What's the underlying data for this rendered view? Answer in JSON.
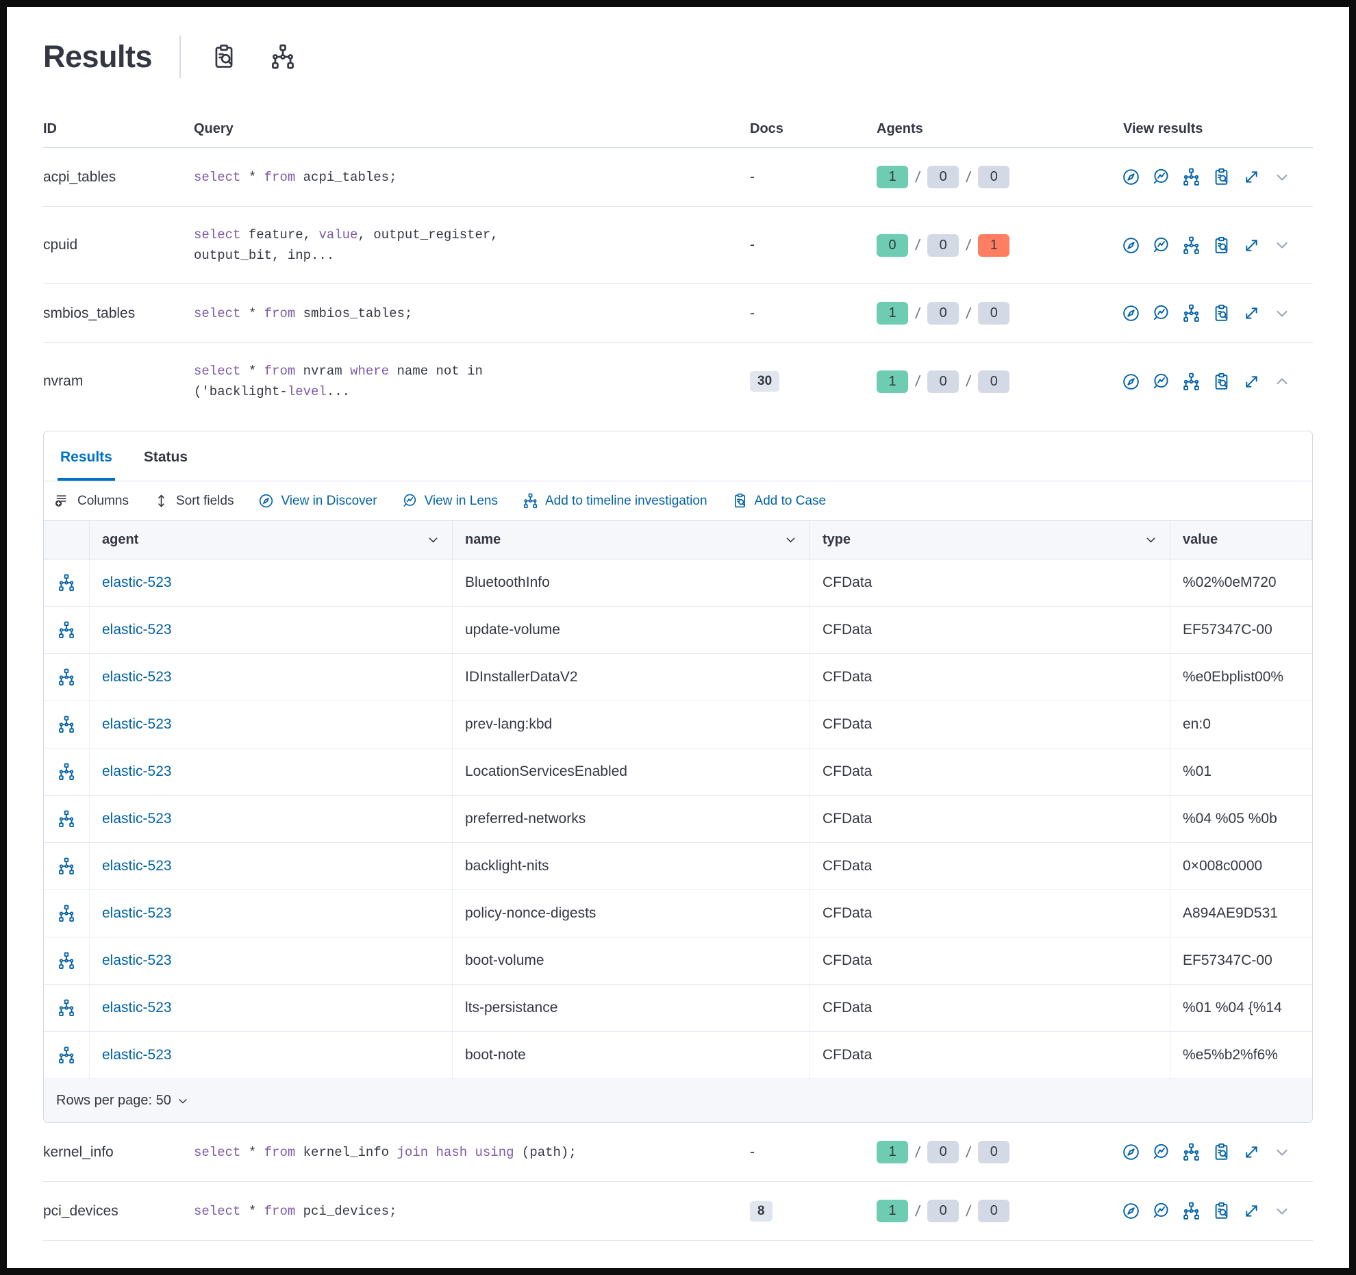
{
  "colors": {
    "accent_blue": "#0061A6",
    "tab_blue": "#0071C2",
    "keyword_purple": "#7D5AA5",
    "success_green": "#6DCCB1",
    "danger_red": "#FF7E62",
    "neutral_badge_gray": "#D3DAE6",
    "text": "#343741"
  },
  "page": {
    "title": "Results",
    "header_icons": [
      {
        "icon": "inspect",
        "name": "live-query-details"
      },
      {
        "icon": "pack",
        "name": "pack"
      }
    ]
  },
  "table": {
    "columns": {
      "id": "ID",
      "query": "Query",
      "docs": "Docs",
      "agents": "Agents",
      "view": "View results"
    },
    "view_actions": [
      {
        "icon": "compass",
        "action": "view-in-discover"
      },
      {
        "icon": "lens",
        "action": "view-in-lens"
      },
      {
        "icon": "pack",
        "action": "add-to-timeline"
      },
      {
        "icon": "inspect",
        "action": "add-to-case"
      },
      {
        "icon": "expand",
        "action": "view-fullscreen"
      }
    ],
    "rows": [
      {
        "id": "acpi_tables",
        "query": [
          {
            "t": "select",
            "k": true
          },
          {
            "t": " * "
          },
          {
            "t": "from",
            "k": true
          },
          {
            "t": " acpi_tables;"
          }
        ],
        "docs": "-",
        "docs_badge": false,
        "agents": [
          {
            "value": "1",
            "status": "success"
          },
          {
            "value": "0",
            "status": "neutral"
          },
          {
            "value": "0",
            "status": "neutral"
          }
        ],
        "expanded": false
      },
      {
        "id": "cpuid",
        "query": [
          {
            "t": "select",
            "k": true
          },
          {
            "t": " feature, "
          },
          {
            "t": "value",
            "k": true
          },
          {
            "t": ", output_register,"
          },
          {
            "br": true
          },
          {
            "t": "output_bit, inp..."
          }
        ],
        "docs": "-",
        "docs_badge": false,
        "agents": [
          {
            "value": "0",
            "status": "success"
          },
          {
            "value": "0",
            "status": "neutral"
          },
          {
            "value": "1",
            "status": "danger"
          }
        ],
        "expanded": false
      },
      {
        "id": "smbios_tables",
        "query": [
          {
            "t": "select",
            "k": true
          },
          {
            "t": " * "
          },
          {
            "t": "from",
            "k": true
          },
          {
            "t": " smbios_tables;"
          }
        ],
        "docs": "-",
        "docs_badge": false,
        "agents": [
          {
            "value": "1",
            "status": "success"
          },
          {
            "value": "0",
            "status": "neutral"
          },
          {
            "value": "0",
            "status": "neutral"
          }
        ],
        "expanded": false
      },
      {
        "id": "nvram",
        "query": [
          {
            "t": "select",
            "k": true
          },
          {
            "t": " * "
          },
          {
            "t": "from",
            "k": true
          },
          {
            "t": " nvram "
          },
          {
            "t": "where",
            "k": true
          },
          {
            "t": " name not in"
          },
          {
            "br": true
          },
          {
            "t": "('backlight-"
          },
          {
            "t": "level",
            "k": true
          },
          {
            "t": "..."
          }
        ],
        "docs": "30",
        "docs_badge": true,
        "agents": [
          {
            "value": "1",
            "status": "success"
          },
          {
            "value": "0",
            "status": "neutral"
          },
          {
            "value": "0",
            "status": "neutral"
          }
        ],
        "expanded": true
      },
      {
        "id": "kernel_info",
        "query": [
          {
            "t": "select",
            "k": true
          },
          {
            "t": " * "
          },
          {
            "t": "from",
            "k": true
          },
          {
            "t": " kernel_info "
          },
          {
            "t": "join hash using",
            "k": true
          },
          {
            "t": " (path);"
          }
        ],
        "docs": "-",
        "docs_badge": false,
        "agents": [
          {
            "value": "1",
            "status": "success"
          },
          {
            "value": "0",
            "status": "neutral"
          },
          {
            "value": "0",
            "status": "neutral"
          }
        ],
        "expanded": false
      },
      {
        "id": "pci_devices",
        "query": [
          {
            "t": "select",
            "k": true
          },
          {
            "t": " * "
          },
          {
            "t": "from",
            "k": true
          },
          {
            "t": " pci_devices;"
          }
        ],
        "docs": "8",
        "docs_badge": true,
        "agents": [
          {
            "value": "1",
            "status": "success"
          },
          {
            "value": "0",
            "status": "neutral"
          },
          {
            "value": "0",
            "status": "neutral"
          }
        ],
        "expanded": false
      }
    ]
  },
  "panel": {
    "tabs": [
      {
        "label": "Results",
        "active": true
      },
      {
        "label": "Status",
        "active": false
      }
    ],
    "toolbar": [
      {
        "label": "Columns",
        "icon": "list-add",
        "variant": "dark",
        "action": "columns"
      },
      {
        "label": "Sort fields",
        "icon": "sort",
        "variant": "dark",
        "action": "sort-fields"
      },
      {
        "label": "View in Discover",
        "icon": "compass",
        "variant": "blue",
        "action": "view-in-discover"
      },
      {
        "label": "View in Lens",
        "icon": "lens",
        "variant": "blue",
        "action": "view-in-lens"
      },
      {
        "label": "Add to timeline investigation",
        "icon": "pack",
        "variant": "blue",
        "action": "add-to-timeline-investigation"
      },
      {
        "label": "Add to Case",
        "icon": "inspect",
        "variant": "blue",
        "action": "add-to-case"
      }
    ],
    "grid": {
      "columns": [
        {
          "label": "agent",
          "sortable": true
        },
        {
          "label": "name",
          "sortable": true
        },
        {
          "label": "type",
          "sortable": true
        },
        {
          "label": "value",
          "sortable": false
        }
      ],
      "rows": [
        {
          "agent": "elastic-523",
          "name": "BluetoothInfo",
          "type": "CFData",
          "value": "%02%0eM720"
        },
        {
          "agent": "elastic-523",
          "name": "update-volume",
          "type": "CFData",
          "value": "EF57347C-00"
        },
        {
          "agent": "elastic-523",
          "name": "IDInstallerDataV2",
          "type": "CFData",
          "value": "%e0Ebplist00%"
        },
        {
          "agent": "elastic-523",
          "name": "prev-lang:kbd",
          "type": "CFData",
          "value": "en:0"
        },
        {
          "agent": "elastic-523",
          "name": "LocationServicesEnabled",
          "type": "CFData",
          "value": "%01"
        },
        {
          "agent": "elastic-523",
          "name": "preferred-networks",
          "type": "CFData",
          "value": "%04 %05 %0b"
        },
        {
          "agent": "elastic-523",
          "name": "backlight-nits",
          "type": "CFData",
          "value": "0×008c0000"
        },
        {
          "agent": "elastic-523",
          "name": "policy-nonce-digests",
          "type": "CFData",
          "value": "A894AE9D531"
        },
        {
          "agent": "elastic-523",
          "name": "boot-volume",
          "type": "CFData",
          "value": "EF57347C-00"
        },
        {
          "agent": "elastic-523",
          "name": "lts-persistance",
          "type": "CFData",
          "value": "%01 %04 {%14"
        },
        {
          "agent": "elastic-523",
          "name": "boot-note",
          "type": "CFData",
          "value": "%e5%b2%f6%"
        }
      ]
    },
    "footer": {
      "rows_per_page": "Rows per page: 50"
    }
  }
}
